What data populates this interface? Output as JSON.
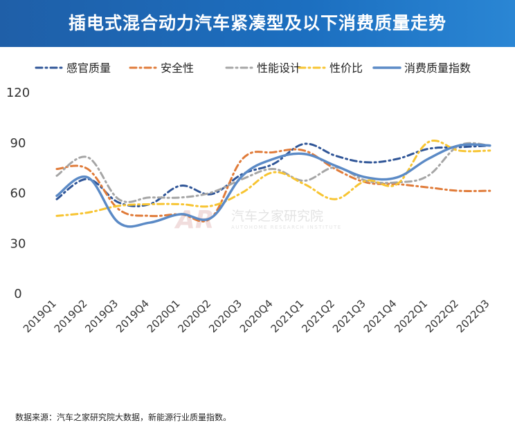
{
  "title": "插电式混合动力汽车紧凑型及以下消费质量走势",
  "source_note": "数据来源：汽车之家研究院大数据，新能源行业质量指数。",
  "watermark": {
    "title": "汽车之家研究院",
    "subtitle": "AUTOHOME RESEARCH INSTITUTE",
    "logo_text": "AR"
  },
  "chart_data": {
    "type": "line",
    "categories": [
      "2019Q1",
      "2019Q2",
      "2019Q3",
      "2019Q4",
      "2020Q1",
      "2020Q2",
      "2020Q3",
      "2020Q4",
      "2021Q1",
      "2021Q2",
      "2021Q3",
      "2021Q4",
      "2022Q1",
      "2022Q2",
      "2022Q3"
    ],
    "ylim": [
      0,
      120
    ],
    "yticks": [
      0,
      30,
      60,
      90,
      120
    ],
    "grid": false,
    "legend_position": "top",
    "series": [
      {
        "name": "感官质量",
        "color": "#2f5597",
        "dash": "dashdot",
        "values": [
          56,
          68,
          54,
          53,
          64,
          59,
          71,
          77,
          89,
          82,
          78,
          80,
          86,
          87,
          88
        ]
      },
      {
        "name": "安全性",
        "color": "#e07b39",
        "dash": "dashdot",
        "values": [
          74,
          74,
          50,
          46,
          47,
          45,
          80,
          84,
          85,
          74,
          66,
          65,
          63,
          61,
          61
        ]
      },
      {
        "name": "性能设计",
        "color": "#a5a5a5",
        "dash": "dashdot",
        "values": [
          70,
          81,
          56,
          57,
          57,
          60,
          68,
          74,
          67,
          75,
          67,
          66,
          70,
          88,
          88
        ]
      },
      {
        "name": "性价比",
        "color": "#f7c431",
        "dash": "dashdot",
        "values": [
          46,
          48,
          52,
          53,
          53,
          52,
          60,
          72,
          65,
          56,
          67,
          65,
          90,
          85,
          85
        ]
      },
      {
        "name": "消费质量指数",
        "color": "#5b8ac6",
        "dash": "solid",
        "values": [
          58,
          69,
          42,
          42,
          47,
          45,
          70,
          80,
          83,
          76,
          69,
          69,
          80,
          88,
          88
        ]
      }
    ]
  }
}
